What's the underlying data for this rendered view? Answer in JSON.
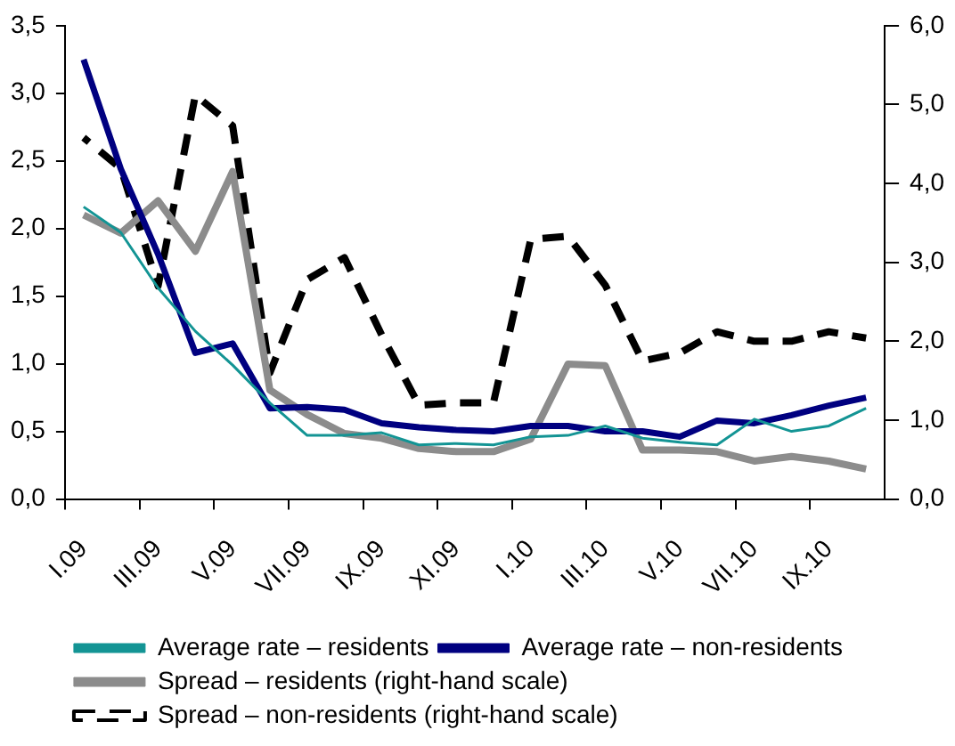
{
  "chart_data": {
    "type": "line",
    "categories": [
      "I.09",
      null,
      "III.09",
      null,
      "V.09",
      null,
      "VII.09",
      null,
      "IX.09",
      null,
      "XI.09",
      null,
      "I.10",
      null,
      "III.10",
      null,
      "V.10",
      null,
      "VII.10",
      null,
      "IX.10",
      null
    ],
    "series": [
      {
        "name": "Average rate – residents",
        "color": "#139494",
        "line_style": "solid",
        "values": [
          2.16,
          1.97,
          1.56,
          1.24,
          0.99,
          0.71,
          0.47,
          0.47,
          0.49,
          0.4,
          0.41,
          0.4,
          0.46,
          0.47,
          0.54,
          0.45,
          0.42,
          0.4,
          0.59,
          0.5,
          0.54,
          0.67
        ]
      },
      {
        "name": "Average rate – non-residents",
        "color": "#000080",
        "line_style": "solid",
        "values": [
          3.25,
          2.44,
          1.81,
          1.08,
          1.15,
          0.67,
          0.68,
          0.66,
          0.56,
          0.53,
          0.51,
          0.5,
          0.54,
          0.54,
          0.5,
          0.5,
          0.46,
          0.58,
          0.56,
          0.62,
          0.69,
          0.75
        ]
      },
      {
        "name": "Spread – residents (right-hand scale)",
        "color": "#8c8c8c",
        "line_style": "solid",
        "axis": "y2",
        "values": [
          3.6,
          3.37,
          3.78,
          3.14,
          4.15,
          1.38,
          1.07,
          0.83,
          0.77,
          0.64,
          0.6,
          0.6,
          0.76,
          1.71,
          1.69,
          0.62,
          0.62,
          0.6,
          0.48,
          0.54,
          0.48,
          0.38
        ]
      },
      {
        "name": "Spread – non-residents (right-hand scale)",
        "color": "#000000",
        "line_style": "dashed",
        "axis": "y2",
        "values": [
          4.58,
          4.19,
          2.7,
          5.12,
          4.73,
          1.6,
          2.78,
          3.06,
          2.08,
          1.19,
          1.22,
          1.22,
          3.29,
          3.33,
          2.71,
          1.75,
          1.85,
          2.12,
          2.0,
          2.0,
          2.12,
          2.04
        ]
      }
    ],
    "ylim": [
      0,
      3.5
    ],
    "yticks": [
      {
        "value": 0,
        "label": "0,0"
      },
      {
        "value": 0.5,
        "label": "0,5"
      },
      {
        "value": 1,
        "label": "1,0"
      },
      {
        "value": 1.5,
        "label": "1,5"
      },
      {
        "value": 2,
        "label": "2,0"
      },
      {
        "value": 2.5,
        "label": "2,5"
      },
      {
        "value": 3,
        "label": "3,0"
      },
      {
        "value": 3.5,
        "label": "3,5"
      }
    ],
    "y2lim": [
      0,
      6
    ],
    "y2ticks": [
      {
        "value": 0,
        "label": "0,0"
      },
      {
        "value": 1,
        "label": "1,0"
      },
      {
        "value": 2,
        "label": "2,0"
      },
      {
        "value": 3,
        "label": "3,0"
      },
      {
        "value": 4,
        "label": "4,0"
      },
      {
        "value": 5,
        "label": "5,0"
      },
      {
        "value": 6,
        "label": "6,0"
      }
    ],
    "grid": false,
    "legend": "bottom",
    "marker": "none"
  }
}
